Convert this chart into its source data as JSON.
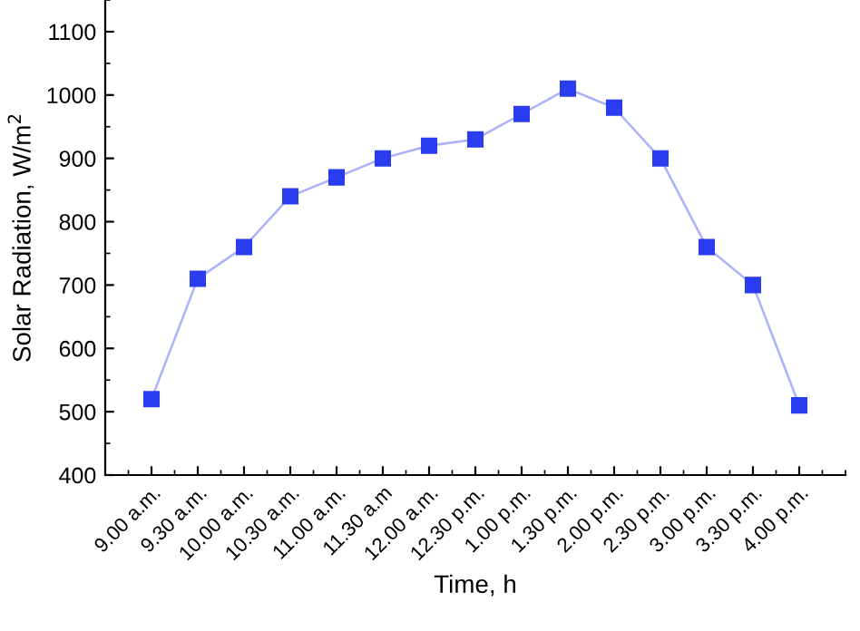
{
  "chart_data": {
    "type": "line",
    "xlabel": "Time, h",
    "ylabel": "Solar Radiation, W/m$^{2}$",
    "categories": [
      "9.00 a.m.",
      "9.30 a.m.",
      "10.00 a.m.",
      "10.30 a.m.",
      "11.00 a.m.",
      "11.30 a.m",
      "12.00 a.m.",
      "12.30 p.m.",
      "1.00 p.m.",
      "1.30 p.m.",
      "2.00 p.m.",
      "2.30 p.m.",
      "3.00 p.m.",
      "3.30 p.m.",
      "4.00 p.m."
    ],
    "series": [
      {
        "color": "#2a3cf0",
        "values": [
          520,
          710,
          760,
          840,
          870,
          900,
          920,
          930,
          970,
          1010,
          980,
          900,
          760,
          700,
          510
        ]
      }
    ],
    "ylim": [
      400,
      1150
    ],
    "yticks": [
      400,
      500,
      600,
      700,
      800,
      900,
      1000,
      1100
    ],
    "marker": "square",
    "line_style": "solid",
    "grid": false,
    "legend": false
  }
}
